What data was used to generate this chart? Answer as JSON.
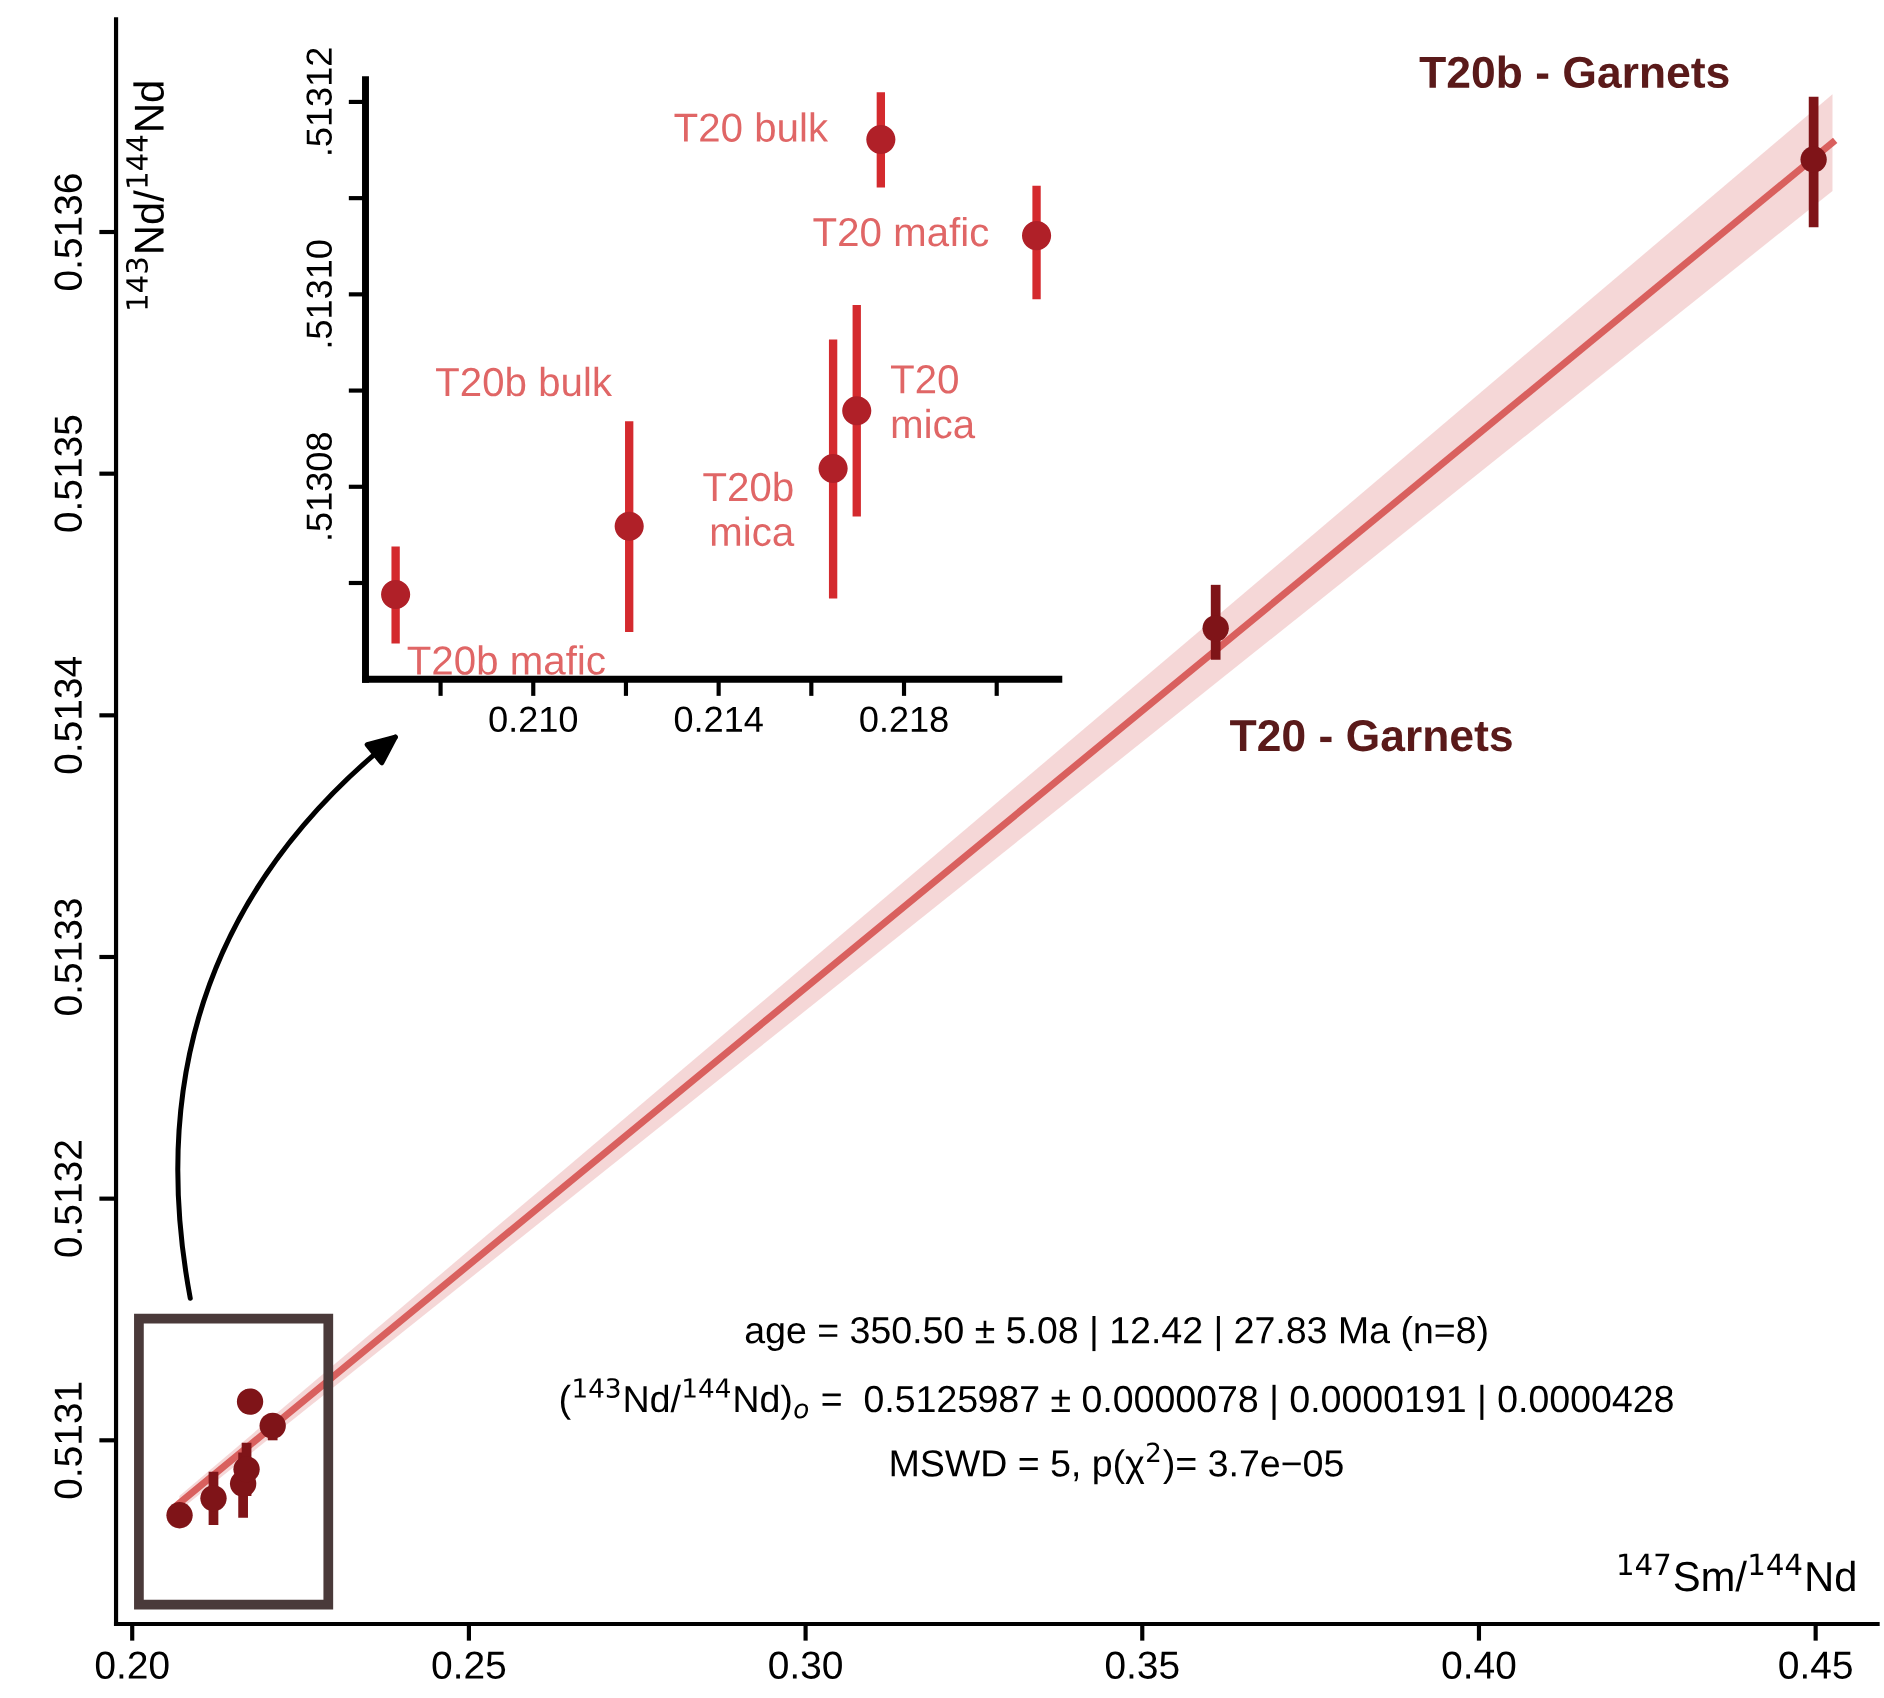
{
  "chart_data": [
    {
      "type": "scatter",
      "xlabel": "$^{147}$Sm/$^{144}$Nd",
      "ylabel": "$^{143}$Nd/$^{144}$Nd",
      "xlim": [
        0.1976,
        0.4592
      ],
      "ylim": [
        0.513024,
        0.513688
      ],
      "xticks": [
        {
          "value": 0.2,
          "label": "0.20"
        },
        {
          "value": 0.25,
          "label": "0.25"
        },
        {
          "value": 0.3,
          "label": "0.30"
        },
        {
          "value": 0.35,
          "label": "0.35"
        },
        {
          "value": 0.4,
          "label": "0.40"
        },
        {
          "value": 0.45,
          "label": "0.45"
        }
      ],
      "yticks": [
        {
          "value": 0.5131,
          "label": "0.5131"
        },
        {
          "value": 0.5132,
          "label": "0.5132"
        },
        {
          "value": 0.5133,
          "label": "0.5133"
        },
        {
          "value": 0.5134,
          "label": "0.5134"
        },
        {
          "value": 0.5135,
          "label": "0.5135"
        },
        {
          "value": 0.5136,
          "label": "0.5136"
        }
      ],
      "grid": false,
      "legend": false,
      "series": [
        {
          "type": "line",
          "color": "#d9605e",
          "x": [
            0.207,
            0.4525
          ],
          "values": [
            0.513074,
            0.513637
          ],
          "lower": [
            0.513071,
            0.513617
          ],
          "upper": [
            0.513077,
            0.513657
          ]
        },
        {
          "marker": "circle",
          "color": "#7f1418",
          "x": [
            0.20703,
            0.21207,
            0.21647,
            0.21698,
            0.2175,
            0.22086,
            0.3609,
            0.4497
          ],
          "values": [
            0.513069,
            0.513076,
            0.513082,
            0.513088,
            0.513116,
            0.513106,
            0.513436,
            0.51363
          ],
          "errors": [
            [
              0.513064,
              0.513074
            ],
            [
              0.513065,
              0.513087
            ],
            [
              0.513068,
              0.513095
            ],
            [
              0.513077,
              0.513099
            ],
            [
              0.513111,
              0.513121
            ],
            [
              0.5131,
              0.513111
            ],
            [
              0.513423,
              0.513454
            ],
            [
              0.513602,
              0.513656
            ]
          ]
        }
      ],
      "annotations": [
        {
          "text": "T20 - Garnets",
          "x": 0.3609,
          "y": 0.513436
        },
        {
          "text": "T20b - Garnets",
          "x": 0.4497,
          "y": 0.51363
        },
        "age = 350.50 ± 5.08 | 12.42 | 27.83 Ma (n=8)",
        "($^{143}$Nd/$^{144}$Nd)$_{o}$ =  0.5125987 ± 0.0000078 | 0.0000191 | 0.0000428",
        "MSWD = 5, p(χ$^{2}$)= 3.7e−05"
      ]
    },
    {
      "type": "scatter",
      "xlim": [
        0.20638,
        0.22134
      ],
      "ylim": [
        0.51306,
        0.5131223
      ],
      "xticks": [
        {
          "value": 0.208,
          "label": null
        },
        {
          "value": 0.21,
          "label": "0.210"
        },
        {
          "value": 0.212,
          "label": null
        },
        {
          "value": 0.214,
          "label": "0.214"
        },
        {
          "value": 0.216,
          "label": null
        },
        {
          "value": 0.218,
          "label": "0.218"
        },
        {
          "value": 0.22,
          "label": null
        }
      ],
      "yticks": [
        {
          "value": 0.51307,
          "label": null
        },
        {
          "value": 0.51308,
          "label": ".51308"
        },
        {
          "value": 0.51309,
          "label": null
        },
        {
          "value": 0.5131,
          "label": ".51310"
        },
        {
          "value": 0.51311,
          "label": null
        },
        {
          "value": 0.51312,
          "label": ".51312"
        }
      ],
      "grid": false,
      "legend": false,
      "series": [
        {
          "marker": "circle",
          "color": "#b02028",
          "x": [
            0.20703,
            0.21207,
            0.21647,
            0.21698,
            0.2175,
            0.22086
          ],
          "values": [
            0.5130688,
            0.5130759,
            0.5130819,
            0.5130879,
            0.5131161,
            0.5131061
          ],
          "errors": [
            [
              0.5130637,
              0.5130738
            ],
            [
              0.5130649,
              0.5130868
            ],
            [
              0.5130684,
              0.5130953
            ],
            [
              0.5130769,
              0.5130989
            ],
            [
              0.5131111,
              0.513121
            ],
            [
              0.5130995,
              0.5131113
            ]
          ]
        }
      ],
      "annotations": [
        {
          "text": "T20b mafic",
          "x": 0.20703,
          "y": 0.5130688
        },
        "T20b bulk",
        {
          "text": "T20b\nmica",
          "x": 0.21647,
          "y": 0.5130819
        },
        {
          "text": "T20\nmica",
          "x": 0.21698,
          "y": 0.5130879
        },
        {
          "text": "T20 bulk",
          "x": 0.2175,
          "y": 0.5131161
        },
        {
          "text": "T20 mafic",
          "x": 0.22086,
          "y": 0.5131061
        }
      ]
    }
  ]
}
